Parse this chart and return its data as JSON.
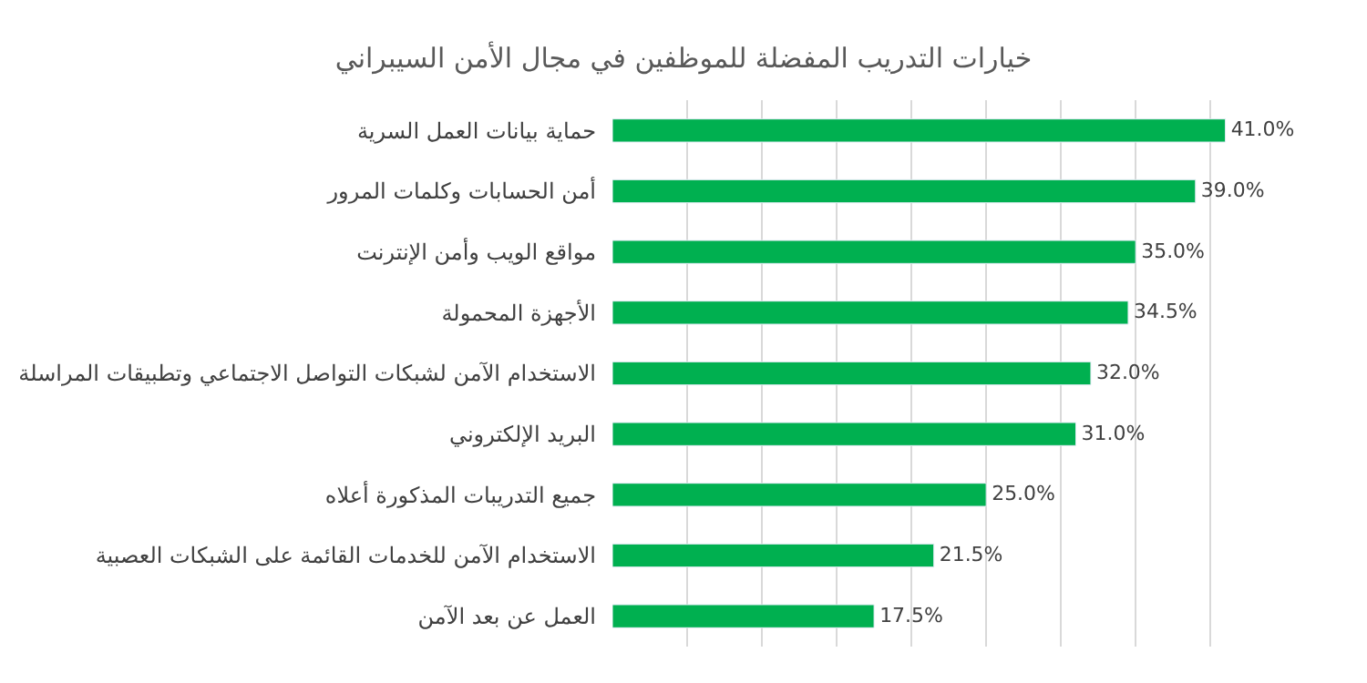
{
  "chart_data": {
    "type": "bar",
    "orientation": "horizontal",
    "title": "خيارات التدريب المفضلة للموظفين في مجال الأمن السيبراني",
    "categories": [
      "حماية بيانات العمل السرية",
      "أمن الحسابات وكلمات المرور",
      "مواقع الويب وأمن الإنترنت",
      "الأجهزة المحمولة",
      "الاستخدام الآمن لشبكات التواصل الاجتماعي وتطبيقات المراسلة",
      "البريد الإلكتروني",
      "جميع التدريبات المذكورة أعلاه",
      "الاستخدام الآمن للخدمات القائمة على الشبكات العصبية",
      "العمل عن بعد الآمن"
    ],
    "values": [
      41.0,
      39.0,
      35.0,
      34.5,
      32.0,
      31.0,
      25.0,
      21.5,
      17.5
    ],
    "value_labels": [
      "41.0%",
      "39.0%",
      "35.0%",
      "34.5%",
      "32.0%",
      "31.0%",
      "25.0%",
      "21.5%",
      "17.5%"
    ],
    "color": "#00b050",
    "grid": "x",
    "tick_labels": "y"
  }
}
